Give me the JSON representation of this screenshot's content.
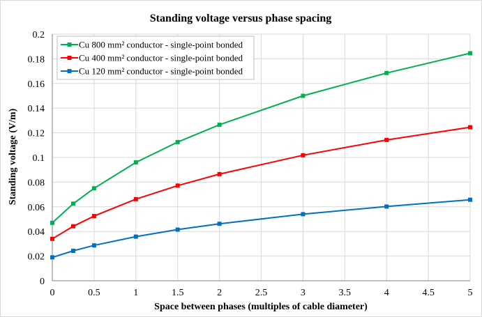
{
  "chart_data": {
    "type": "line",
    "title": "Standing voltage versus phase spacing",
    "xlabel": "Space between phases (multiples of cable diameter)",
    "ylabel": "Standing voltage (V/m)",
    "xlim": [
      0,
      5
    ],
    "ylim": [
      0,
      0.2
    ],
    "x_ticks": [
      "0",
      "0.5",
      "1",
      "1.5",
      "2",
      "2.5",
      "3",
      "3.5",
      "4",
      "4.5",
      "5"
    ],
    "y_ticks": [
      "0",
      "0.02",
      "0.04",
      "0.06",
      "0.08",
      "0.1",
      "0.12",
      "0.14",
      "0.16",
      "0.18",
      "0.2"
    ],
    "grid": true,
    "legend_position": "top-left",
    "x": [
      0,
      0.25,
      0.5,
      1,
      1.5,
      2,
      3,
      4,
      5
    ],
    "series": [
      {
        "name": "Cu 800 mm² conductor - single-point bonded",
        "color": "#00b050",
        "values": [
          0.047,
          0.0625,
          0.075,
          0.096,
          0.1125,
          0.1265,
          0.15,
          0.1685,
          0.1845
        ]
      },
      {
        "name": "Cu 400 mm² conductor - single-point bonded",
        "color": "#ff0000",
        "values": [
          0.034,
          0.0442,
          0.0525,
          0.0662,
          0.0772,
          0.0865,
          0.1018,
          0.1142,
          0.1245
        ]
      },
      {
        "name": "Cu 120 mm² conductor - single-point bonded",
        "color": "#0070c0",
        "values": [
          0.019,
          0.0243,
          0.0287,
          0.0358,
          0.0415,
          0.0462,
          0.054,
          0.0602,
          0.0657
        ]
      }
    ]
  }
}
